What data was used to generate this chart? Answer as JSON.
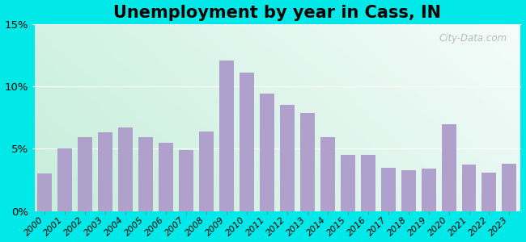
{
  "title": "Unemployment by year in Cass, IN",
  "years": [
    2000,
    2001,
    2002,
    2003,
    2004,
    2005,
    2006,
    2007,
    2008,
    2009,
    2010,
    2011,
    2012,
    2013,
    2014,
    2015,
    2016,
    2017,
    2018,
    2019,
    2020,
    2021,
    2022,
    2023
  ],
  "values": [
    3.0,
    5.0,
    5.9,
    6.3,
    6.7,
    5.9,
    5.5,
    4.9,
    6.4,
    12.1,
    11.1,
    9.4,
    8.5,
    7.9,
    5.9,
    4.5,
    4.5,
    3.5,
    3.3,
    3.4,
    7.0,
    3.7,
    3.1,
    3.8
  ],
  "bar_color": "#b0a0cc",
  "ylim": [
    0,
    15
  ],
  "yticks": [
    0,
    5,
    10,
    15
  ],
  "ytick_labels": [
    "0%",
    "5%",
    "10%",
    "15%"
  ],
  "bg_top_left": "#d0ede0",
  "bg_top_right": "#f0fafa",
  "bg_bottom_left": "#c8ecd8",
  "bg_bottom_right": "#e8faf5",
  "outer_bg": "#00e8e8",
  "watermark": "City-Data.com",
  "title_fontsize": 15,
  "axis_fontsize": 8,
  "grid_color": "#ccddcc",
  "figsize": [
    6.5,
    3.0
  ],
  "dpi": 100
}
